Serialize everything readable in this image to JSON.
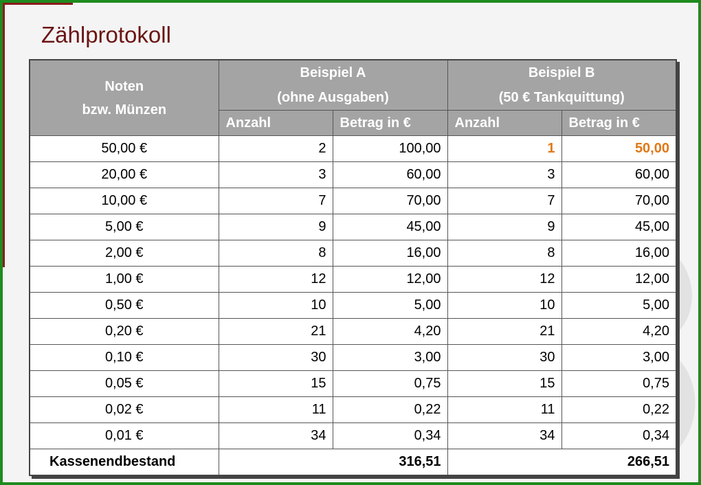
{
  "title": "Zählprotokoll",
  "header": {
    "col1": [
      "Noten",
      "bzw. Münzen"
    ],
    "groupA": [
      "Beispiel A",
      "(ohne Ausgaben)"
    ],
    "groupB": [
      "Beispiel B",
      "(50 € Tankquittung)"
    ],
    "sub": [
      "Anzahl",
      "Betrag in €",
      "Anzahl",
      "Betrag in €"
    ]
  },
  "rows": [
    {
      "den": "50,00 €",
      "a_count": "2",
      "a_amount": "100,00",
      "b_count": "1",
      "b_amount": "50,00"
    },
    {
      "den": "20,00 €",
      "a_count": "3",
      "a_amount": "60,00",
      "b_count": "3",
      "b_amount": "60,00"
    },
    {
      "den": "10,00 €",
      "a_count": "7",
      "a_amount": "70,00",
      "b_count": "7",
      "b_amount": "70,00"
    },
    {
      "den": "5,00 €",
      "a_count": "9",
      "a_amount": "45,00",
      "b_count": "9",
      "b_amount": "45,00"
    },
    {
      "den": "2,00 €",
      "a_count": "8",
      "a_amount": "16,00",
      "b_count": "8",
      "b_amount": "16,00"
    },
    {
      "den": "1,00 €",
      "a_count": "12",
      "a_amount": "12,00",
      "b_count": "12",
      "b_amount": "12,00"
    },
    {
      "den": "0,50 €",
      "a_count": "10",
      "a_amount": "5,00",
      "b_count": "10",
      "b_amount": "5,00"
    },
    {
      "den": "0,20 €",
      "a_count": "21",
      "a_amount": "4,20",
      "b_count": "21",
      "b_amount": "4,20"
    },
    {
      "den": "0,10 €",
      "a_count": "30",
      "a_amount": "3,00",
      "b_count": "30",
      "b_amount": "3,00"
    },
    {
      "den": "0,05 €",
      "a_count": "15",
      "a_amount": "0,75",
      "b_count": "15",
      "b_amount": "0,75"
    },
    {
      "den": "0,02 €",
      "a_count": "11",
      "a_amount": "0,22",
      "b_count": "11",
      "b_amount": "0,22"
    },
    {
      "den": "0,01 €",
      "a_count": "34",
      "a_amount": "0,34",
      "b_count": "34",
      "b_amount": "0,34"
    }
  ],
  "total": {
    "label": "Kassenendbestand",
    "a": "316,51",
    "b": "266,51"
  },
  "colors": {
    "frame": "#1e8b1e",
    "title": "#6b1414",
    "header_bg": "#a4a4a4",
    "highlight": "#e07818"
  }
}
